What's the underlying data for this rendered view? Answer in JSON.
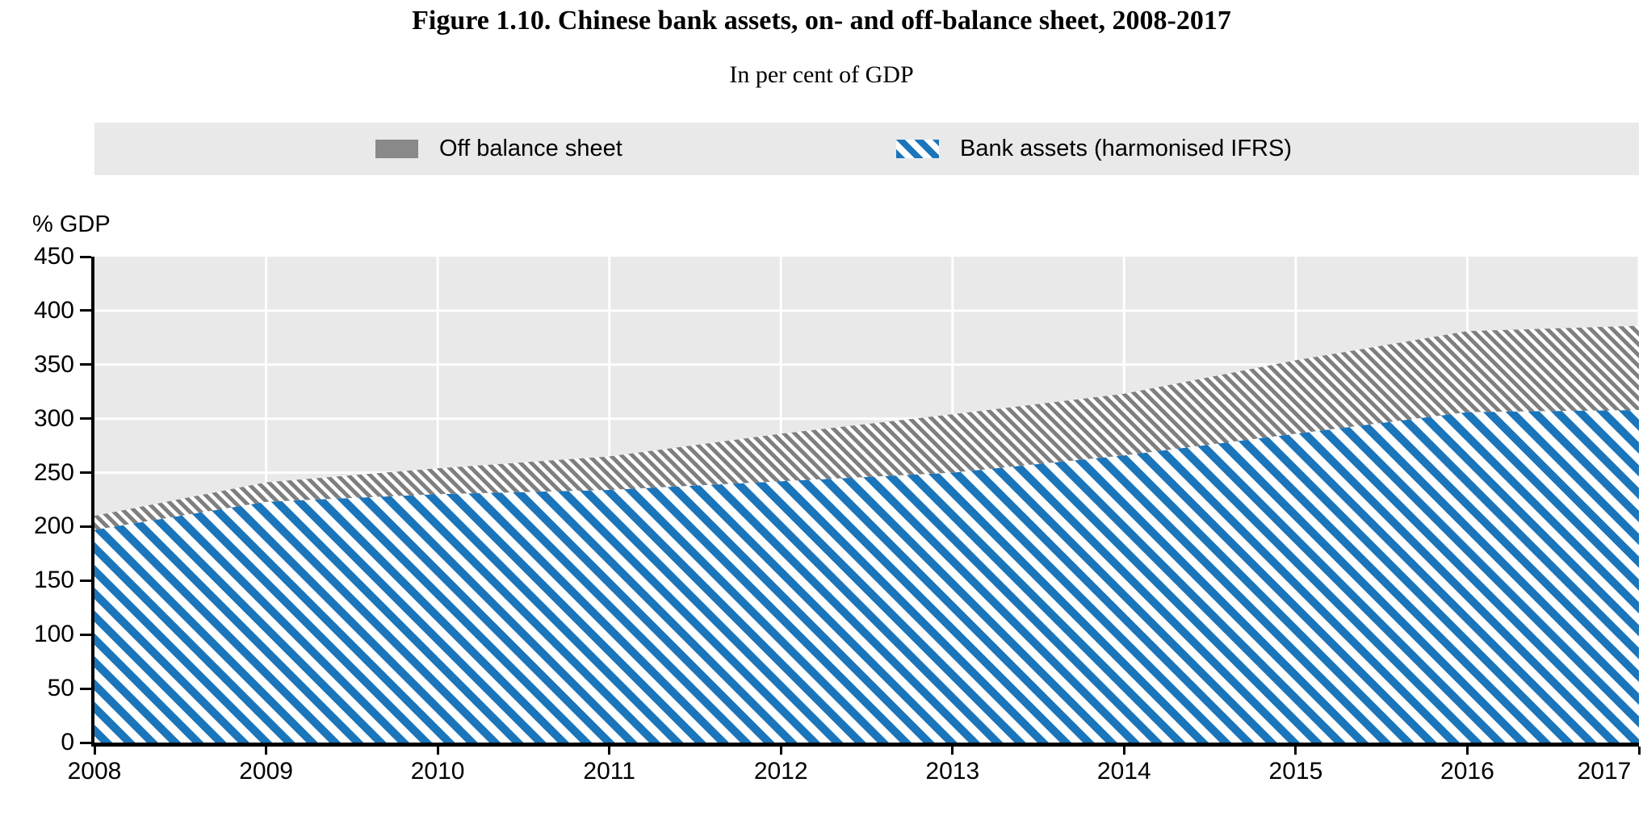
{
  "figure": {
    "title": "Figure 1.10. Chinese bank assets, on- and off-balance sheet, 2008-2017",
    "subtitle": "In per cent of GDP"
  },
  "legend": {
    "items": [
      {
        "label": "Off balance sheet",
        "swatch": "gray-solid-rect"
      },
      {
        "label": "Bank assets (harmonised IFRS)",
        "swatch": "blue-diagonal-stripe-rect"
      }
    ]
  },
  "y_axis": {
    "unit_label": "% GDP",
    "ticks": [
      0,
      50,
      100,
      150,
      200,
      250,
      300,
      350,
      400,
      450
    ]
  },
  "x_axis": {
    "years": [
      "2008",
      "2009",
      "2010",
      "2011",
      "2012",
      "2013",
      "2014",
      "2015",
      "2016",
      "2017"
    ]
  },
  "colors": {
    "series_blue": "#1b75bb",
    "series_gray": "#7f7f7f",
    "legend_gray": "#898989",
    "plot_bg": "#e9e9e9",
    "legend_band_bg": "#e9e9e9",
    "gridline": "#ffffff",
    "axis": "#000000",
    "text": "#000000"
  },
  "chart_data": {
    "type": "area",
    "stacked": true,
    "title": "Figure 1.10. Chinese bank assets, on- and off-balance sheet, 2008-2017",
    "subtitle": "In per cent of GDP",
    "xlabel": "",
    "ylabel": "% GDP",
    "ylim": [
      0,
      450
    ],
    "grid": true,
    "legend_position": "top",
    "x": [
      2008,
      2009,
      2010,
      2011,
      2012,
      2013,
      2014,
      2015,
      2016,
      2017
    ],
    "series": [
      {
        "name": "Bank assets (harmonised IFRS)",
        "style": "blue-diagonal-hatch",
        "values": [
          197,
          223,
          230,
          234,
          242,
          250,
          266,
          286,
          306,
          308
        ]
      },
      {
        "name": "Off balance sheet",
        "style": "gray-diagonal-hatch",
        "values": [
          13,
          18,
          24,
          31,
          44,
          54,
          57,
          68,
          75,
          78
        ]
      }
    ],
    "stacked_totals": [
      210,
      241,
      254,
      265,
      286,
      304,
      323,
      354,
      381,
      386
    ]
  }
}
